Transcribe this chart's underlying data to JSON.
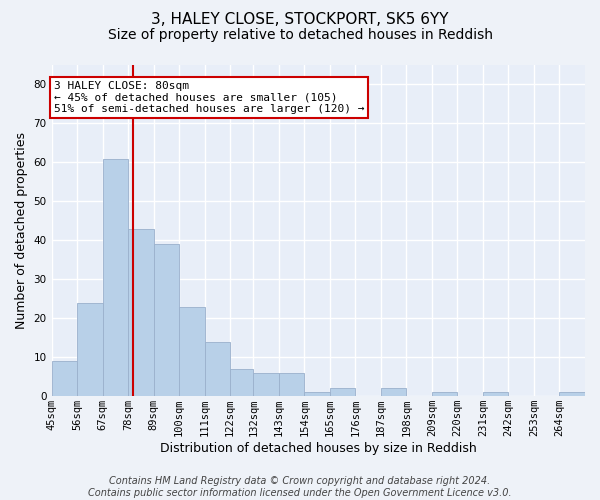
{
  "title": "3, HALEY CLOSE, STOCKPORT, SK5 6YY",
  "subtitle": "Size of property relative to detached houses in Reddish",
  "xlabel": "Distribution of detached houses by size in Reddish",
  "ylabel": "Number of detached properties",
  "bar_color": "#b8d0e8",
  "bar_edge_color": "#9ab0cc",
  "background_color": "#e8eef8",
  "grid_color": "#ffffff",
  "annotation_line_color": "#cc0000",
  "annotation_box_color": "#cc0000",
  "categories": [
    "45sqm",
    "56sqm",
    "67sqm",
    "78sqm",
    "89sqm",
    "100sqm",
    "111sqm",
    "122sqm",
    "132sqm",
    "143sqm",
    "154sqm",
    "165sqm",
    "176sqm",
    "187sqm",
    "198sqm",
    "209sqm",
    "220sqm",
    "231sqm",
    "242sqm",
    "253sqm",
    "264sqm"
  ],
  "values": [
    9,
    24,
    61,
    43,
    39,
    23,
    14,
    7,
    6,
    6,
    1,
    2,
    0,
    2,
    0,
    1,
    0,
    1,
    0,
    0,
    1
  ],
  "bin_edges": [
    45,
    56,
    67,
    78,
    89,
    100,
    111,
    122,
    132,
    143,
    154,
    165,
    176,
    187,
    198,
    209,
    220,
    231,
    242,
    253,
    264,
    275
  ],
  "property_line_x": 80,
  "annotation_text_line1": "3 HALEY CLOSE: 80sqm",
  "annotation_text_line2": "← 45% of detached houses are smaller (105)",
  "annotation_text_line3": "51% of semi-detached houses are larger (120) →",
  "ylim": [
    0,
    85
  ],
  "yticks": [
    0,
    10,
    20,
    30,
    40,
    50,
    60,
    70,
    80
  ],
  "footer_text": "Contains HM Land Registry data © Crown copyright and database right 2024.\nContains public sector information licensed under the Open Government Licence v3.0.",
  "title_fontsize": 11,
  "subtitle_fontsize": 10,
  "xlabel_fontsize": 9,
  "ylabel_fontsize": 9,
  "tick_fontsize": 7.5,
  "annotation_fontsize": 8,
  "footer_fontsize": 7
}
